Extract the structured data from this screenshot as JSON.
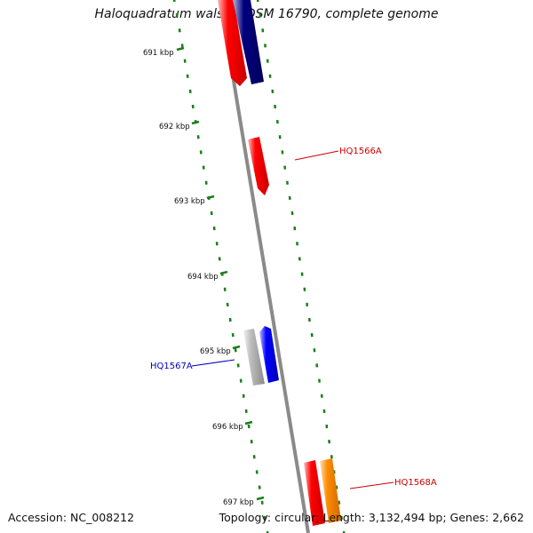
{
  "title": "Haloquadratum walsbyi DSM 16790, complete genome",
  "footer": {
    "accession": "Accession: NC_008212",
    "topology": "Topology: circular; Length: 3,132,494 bp; Genes: 2,662"
  },
  "colors": {
    "backbone": "#888888",
    "tick": "#1a7f1a",
    "red_gene": "#ff0000",
    "navy_gene": "#000080",
    "blue_gene": "#0000ff",
    "gray_gene": "#b8b8b8",
    "orange_gene": "#ff8c00",
    "label_red": "#cc0000",
    "label_blue": "#0000bb"
  },
  "ticks": [
    {
      "label": "691 kbp"
    },
    {
      "label": "692 kbp"
    },
    {
      "label": "693 kbp"
    },
    {
      "label": "694 kbp"
    },
    {
      "label": "695 kbp"
    },
    {
      "label": "696 kbp"
    },
    {
      "label": "697 kbp"
    }
  ],
  "gene_labels": [
    {
      "text": "HQ1566A",
      "color": "label_red"
    },
    {
      "text": "HQ1567A",
      "color": "label_blue"
    },
    {
      "text": "HQ1568A",
      "color": "label_red"
    }
  ]
}
